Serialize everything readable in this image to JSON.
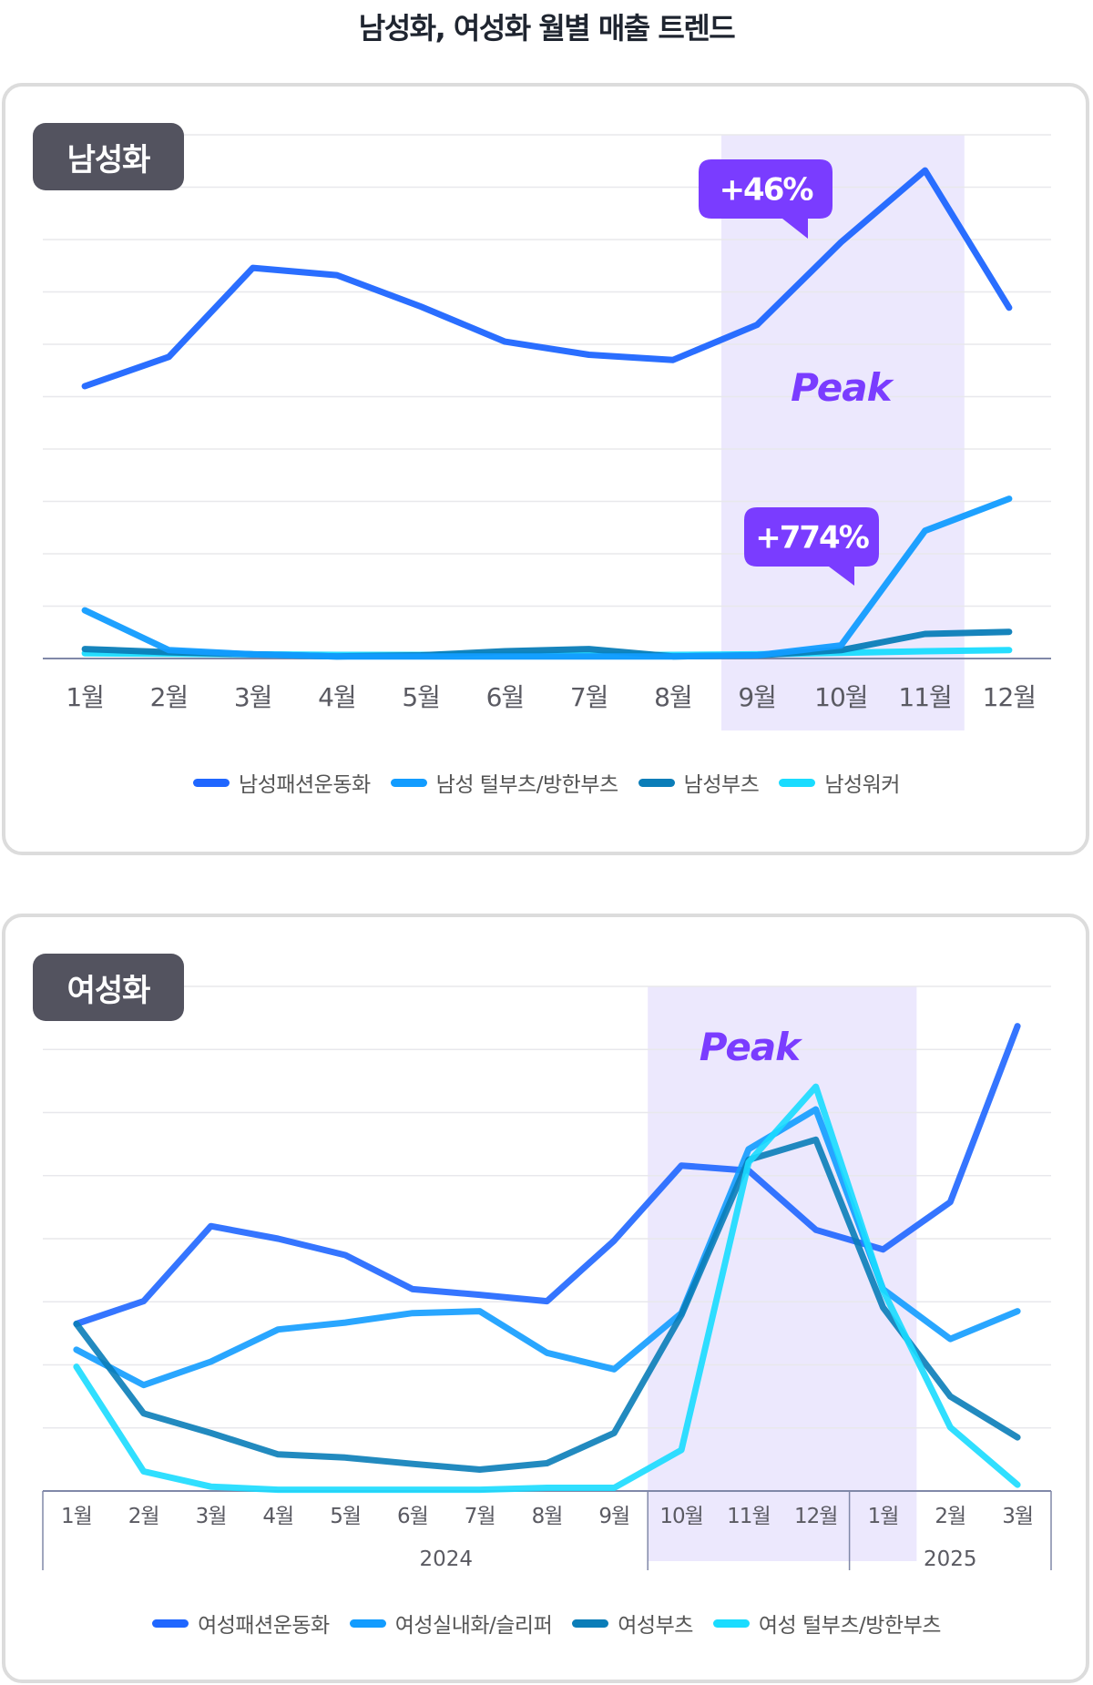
{
  "title": "남성화, 여성화 월별 매출 트렌드",
  "colors": {
    "fashion": "#1f66ff",
    "series2": "#129cff",
    "boots": "#0a7db8",
    "series4": "#1adcff",
    "peak_band": "#ece8fd",
    "callout": "#7a3cff",
    "badge": "#53535f",
    "grid": "#e8e8ec",
    "axis": "#8088a8"
  },
  "chart_data": [
    {
      "type": "line",
      "title": "남성화",
      "xlabel": "",
      "ylabel": "",
      "grid": true,
      "legend": "bottom",
      "categories": [
        "1월",
        "2월",
        "3월",
        "4월",
        "5월",
        "6월",
        "7월",
        "8월",
        "9월",
        "10월",
        "11월",
        "12월"
      ],
      "ylim": [
        0,
        10
      ],
      "peak_range": [
        "9월",
        "11월"
      ],
      "peak_label": "Peak",
      "annotations": [
        {
          "text": "+46%",
          "series": "남성패션운동화"
        },
        {
          "text": "+774%",
          "series": "남성 털부츠/방한부츠"
        }
      ],
      "series": [
        {
          "name": "남성패션운동화",
          "color_key": "fashion",
          "values": [
            5.2,
            5.76,
            7.46,
            7.32,
            6.72,
            6.05,
            5.8,
            5.7,
            6.37,
            7.95,
            9.32,
            6.7
          ]
        },
        {
          "name": "남성 털부츠/방한부츠",
          "color_key": "series2",
          "values": [
            0.92,
            0.16,
            0.08,
            0.04,
            0.04,
            0.04,
            0.04,
            0.04,
            0.06,
            0.25,
            2.44,
            3.05
          ]
        },
        {
          "name": "남성부츠",
          "color_key": "boots",
          "values": [
            0.18,
            0.12,
            0.08,
            0.04,
            0.06,
            0.14,
            0.18,
            0.04,
            0.06,
            0.16,
            0.47,
            0.51
          ]
        },
        {
          "name": "남성워커",
          "color_key": "series4",
          "values": [
            0.1,
            0.09,
            0.08,
            0.07,
            0.07,
            0.07,
            0.07,
            0.07,
            0.08,
            0.11,
            0.14,
            0.16
          ]
        }
      ]
    },
    {
      "type": "line",
      "title": "여성화",
      "xlabel": "",
      "ylabel": "",
      "grid": true,
      "legend": "bottom",
      "categories": [
        "1월",
        "2월",
        "3월",
        "4월",
        "5월",
        "6월",
        "7월",
        "8월",
        "9월",
        "10월",
        "11월",
        "12월",
        "1월",
        "2월",
        "3월"
      ],
      "year_groups": [
        {
          "label": "2024",
          "count": 12
        },
        {
          "label": "2025",
          "count": 3
        }
      ],
      "ylim": [
        0,
        8
      ],
      "peak_range_index": [
        9,
        12
      ],
      "peak_label": "Peak",
      "series": [
        {
          "name": "여성패션운동화",
          "color_key": "fashion",
          "values": [
            2.65,
            3.01,
            4.2,
            4.0,
            3.74,
            3.2,
            3.11,
            3.01,
            3.97,
            5.16,
            5.08,
            4.14,
            3.83,
            4.58,
            7.37
          ]
        },
        {
          "name": "여성실내화/슬리퍼",
          "color_key": "series2",
          "values": [
            2.24,
            1.68,
            2.05,
            2.56,
            2.67,
            2.82,
            2.85,
            2.19,
            1.93,
            2.82,
            5.42,
            6.05,
            3.2,
            2.41,
            2.85
          ]
        },
        {
          "name": "여성부츠",
          "color_key": "boots",
          "values": [
            2.65,
            1.23,
            0.92,
            0.58,
            0.53,
            0.43,
            0.34,
            0.44,
            0.92,
            2.79,
            5.25,
            5.57,
            2.91,
            1.5,
            0.85
          ]
        },
        {
          "name": "여성 털부츠/방한부츠",
          "color_key": "series4",
          "values": [
            1.97,
            0.31,
            0.07,
            0.02,
            0.02,
            0.02,
            0.02,
            0.05,
            0.05,
            0.65,
            5.21,
            6.41,
            3.18,
            1.01,
            0.1
          ]
        }
      ]
    }
  ]
}
